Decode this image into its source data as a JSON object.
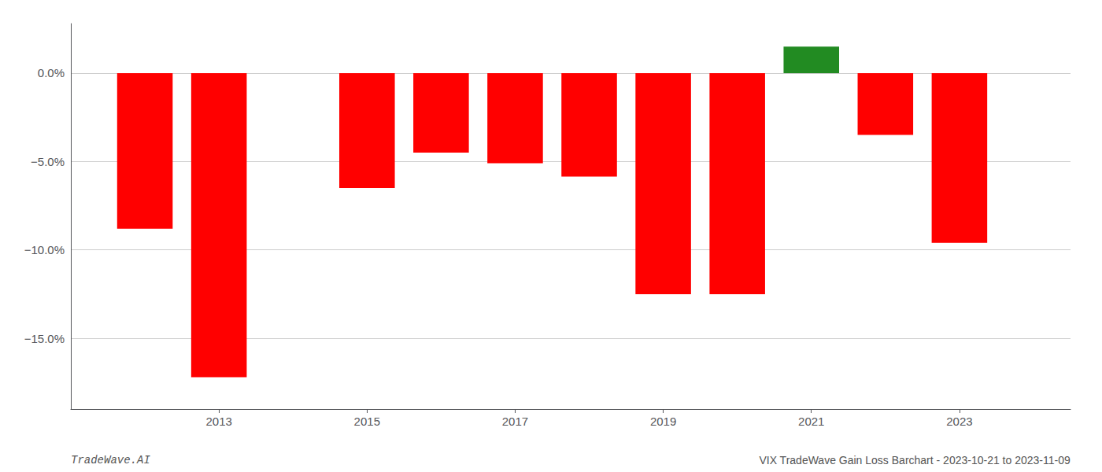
{
  "chart_data": {
    "type": "bar",
    "x": [
      2012,
      2013,
      2015,
      2016,
      2017,
      2018,
      2019,
      2020,
      2021,
      2022,
      2023
    ],
    "values": [
      -8.8,
      -17.2,
      -6.5,
      -4.5,
      -5.1,
      -5.85,
      -12.5,
      -12.5,
      1.5,
      -3.5,
      -9.6
    ],
    "colors": [
      "#FF0000",
      "#FF0000",
      "#FF0000",
      "#FF0000",
      "#FF0000",
      "#FF0000",
      "#FF0000",
      "#FF0000",
      "#228B22",
      "#FF0000",
      "#FF0000"
    ],
    "xlim": [
      2011.0,
      2024.5
    ],
    "ylim": [
      -19.0,
      2.8
    ],
    "xticks": [
      2013,
      2015,
      2017,
      2019,
      2021,
      2023
    ],
    "yticks": [
      {
        "value": 0.0,
        "label": "0.0%"
      },
      {
        "value": -5.0,
        "label": "−5.0%"
      },
      {
        "value": -10.0,
        "label": "−10.0%"
      },
      {
        "value": -15.0,
        "label": "−15.0%"
      }
    ],
    "grid": true,
    "annotations": [
      "TradeWave.AI",
      "VIX TradeWave Gain Loss Barchart - 2023-10-21 to 2023-11-09"
    ]
  }
}
